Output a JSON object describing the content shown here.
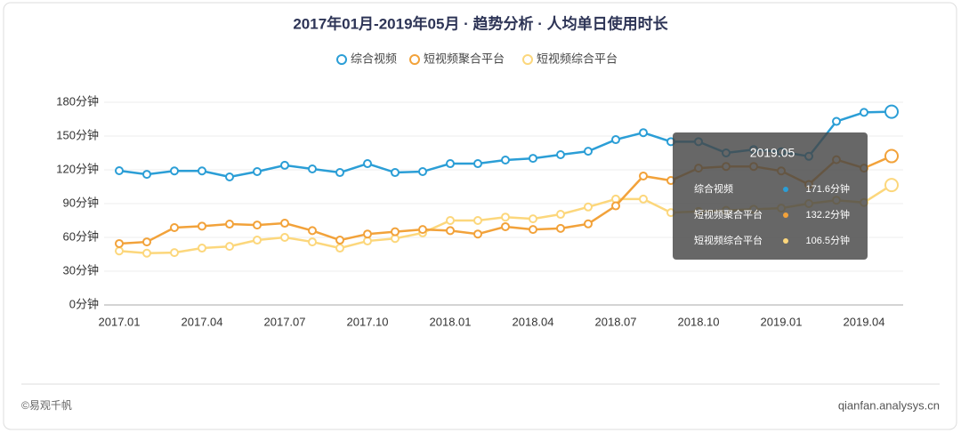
{
  "chart_data": {
    "type": "line",
    "title": "2017年01月-2019年05月 · 趋势分析 · 人均单日使用时长",
    "categories": [
      "2017.01",
      null,
      null,
      "2017.04",
      null,
      null,
      "2017.07",
      null,
      null,
      "2017.10",
      null,
      null,
      "2018.01",
      null,
      null,
      "2018.04",
      null,
      null,
      "2018.07",
      null,
      null,
      "2018.10",
      null,
      null,
      "2019.01",
      null,
      null,
      "2019.04",
      null
    ],
    "series": [
      {
        "name": "综合视频",
        "color": "#2b9ed6",
        "values": [
          119.2,
          116,
          119,
          119,
          113.7,
          118.4,
          124,
          120.8,
          117.6,
          125.5,
          117.6,
          118.4,
          125.5,
          125.5,
          128.7,
          130.2,
          133.4,
          136.5,
          146.8,
          153,
          145,
          145,
          135,
          138,
          136,
          132,
          163,
          171,
          171.6
        ]
      },
      {
        "name": "短视频聚合平台",
        "color": "#f2a23a",
        "values": [
          54.5,
          56,
          68.7,
          70,
          71.8,
          71,
          72.6,
          66,
          57.6,
          63,
          65,
          67,
          66,
          63,
          69.5,
          67,
          68,
          72,
          88,
          114.5,
          110.5,
          121.5,
          123,
          123,
          119,
          107,
          129,
          121.5,
          132.2
        ]
      },
      {
        "name": "短视频综合平台",
        "color": "#fcd77c",
        "values": [
          48,
          46,
          46.5,
          50.5,
          52,
          57.6,
          60,
          56,
          50.5,
          56.8,
          59,
          64,
          75,
          75,
          78,
          76.5,
          80.5,
          87,
          94,
          94,
          82,
          83,
          84,
          85,
          86,
          90,
          93,
          91,
          106.5
        ]
      }
    ],
    "ylim": [
      0,
      180
    ],
    "yticks": [
      {
        "value": 0,
        "label": "0分钟"
      },
      {
        "value": 30,
        "label": "30分钟"
      },
      {
        "value": 60,
        "label": "60分钟"
      },
      {
        "value": 90,
        "label": "90分钟"
      },
      {
        "value": 120,
        "label": "120分钟"
      },
      {
        "value": 150,
        "label": "150分钟"
      },
      {
        "value": 180,
        "label": "180分钟"
      }
    ],
    "grid": true,
    "tooltip": {
      "title": "2019.05",
      "value_labels": [
        "171.6分钟",
        "132.2分钟",
        "106.5分钟"
      ]
    }
  },
  "footer": {
    "left": "©易观千帆",
    "right": "qianfan.analysys.cn"
  }
}
